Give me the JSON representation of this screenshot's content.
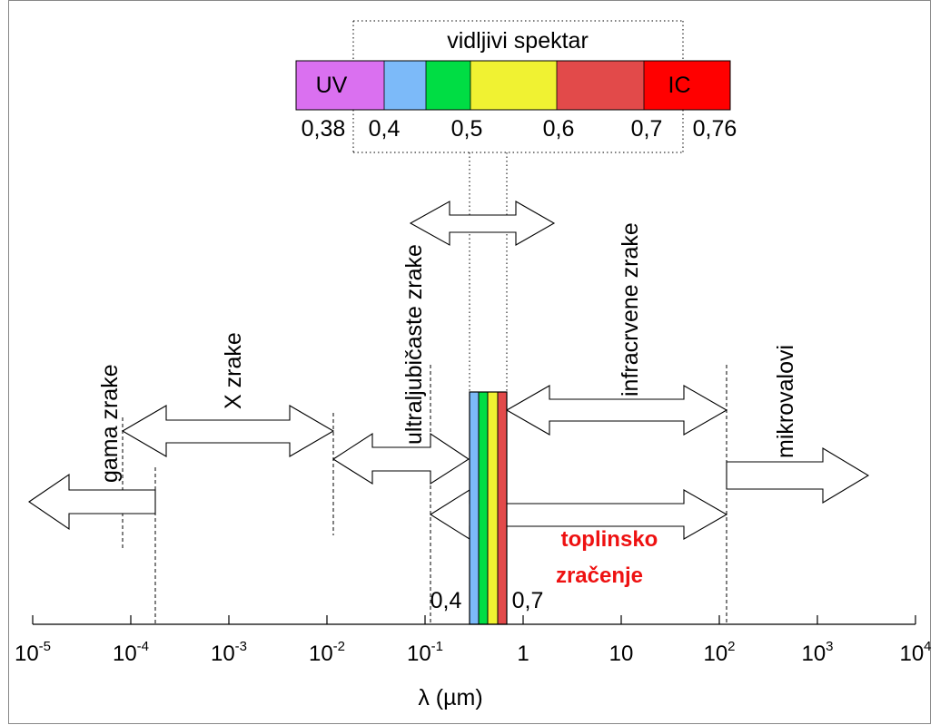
{
  "colors": {
    "uv": "#da70f0",
    "blue": "#7cbaf9",
    "green": "#00dd44",
    "yellow": "#f0f232",
    "orange_red": "#e24a4a",
    "ic": "#ff0000",
    "label_red": "#ee1111"
  },
  "visible_spectrum": {
    "title": "vidljivi spektar",
    "uv_label": "UV",
    "ic_label": "IC",
    "tick_labels": [
      "0,38",
      "0,4",
      "0,5",
      "0,6",
      "0,7",
      "0,76"
    ],
    "segments": [
      {
        "color": "uv",
        "from": 0.38,
        "to": 0.4
      },
      {
        "color": "blue",
        "from": 0.4,
        "to": 0.45
      },
      {
        "color": "green",
        "from": 0.45,
        "to": 0.5
      },
      {
        "color": "yellow",
        "from": 0.5,
        "to": 0.6
      },
      {
        "color": "orange_red",
        "from": 0.6,
        "to": 0.7
      },
      {
        "color": "ic",
        "from": 0.7,
        "to": 0.76
      }
    ]
  },
  "regions": {
    "gamma": "gama zrake",
    "x": "X zrake",
    "uv": "ultraljubičaste zrake",
    "ir": "infracrvene zrake",
    "micro": "mikrovalovi",
    "thermal_line1": "toplinsko",
    "thermal_line2": "zračenje"
  },
  "band_labels": {
    "left": "0,4",
    "right": "0,7"
  },
  "axis": {
    "label": "λ (µm)",
    "ticks": [
      {
        "base": "10",
        "exp": "-5"
      },
      {
        "base": "10",
        "exp": "-4"
      },
      {
        "base": "10",
        "exp": "-3"
      },
      {
        "base": "10",
        "exp": "-2"
      },
      {
        "base": "10",
        "exp": "-1"
      },
      {
        "base": "1",
        "exp": ""
      },
      {
        "base": "10",
        "exp": ""
      },
      {
        "base": "10",
        "exp": "2"
      },
      {
        "base": "10",
        "exp": "3"
      },
      {
        "base": "10",
        "exp": "4"
      }
    ]
  }
}
